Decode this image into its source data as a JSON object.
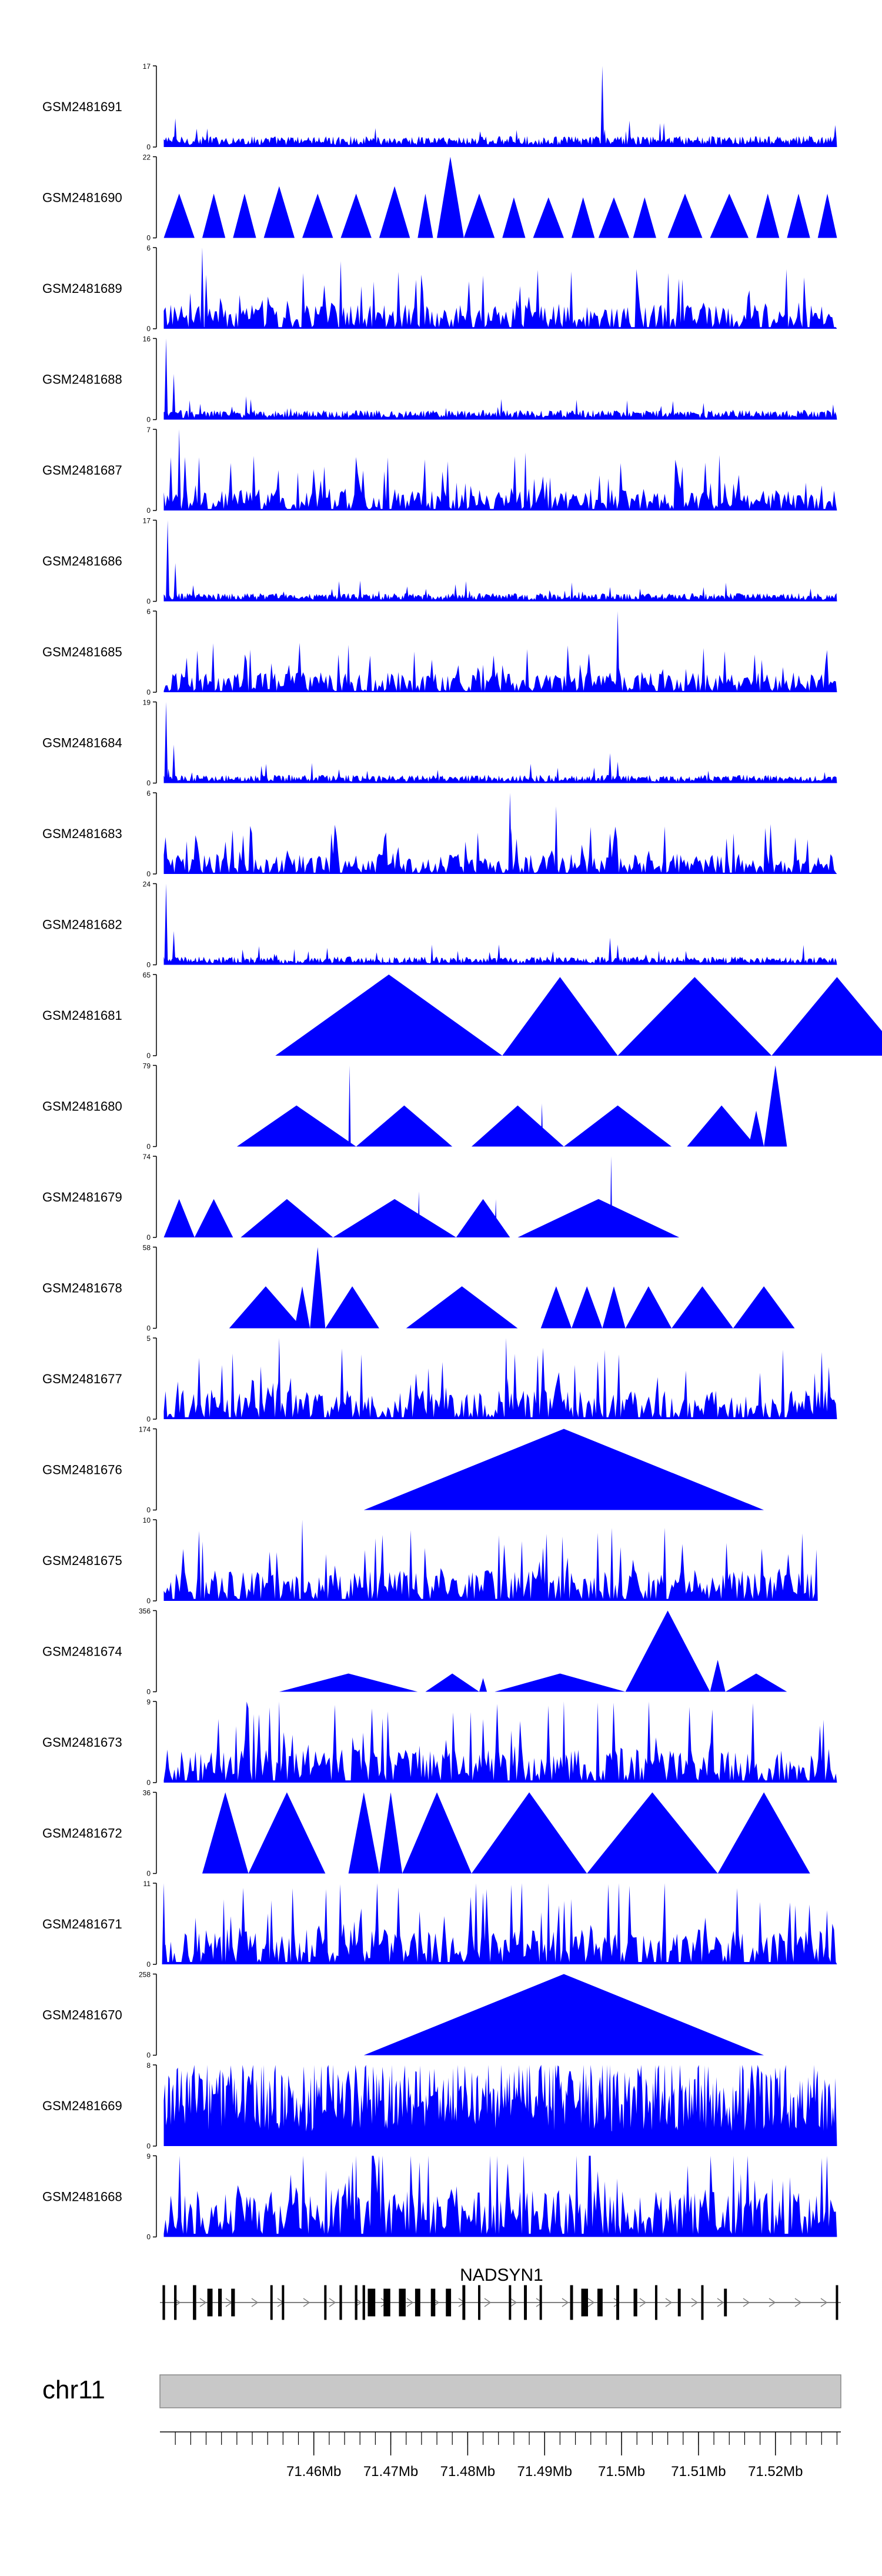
{
  "colors": {
    "fill": "#0000ff",
    "axis": "#000000",
    "ideogram": "#c8c8c8",
    "gene": "#000000",
    "intron": "#808080"
  },
  "chart_data": {
    "type": "area",
    "title": "",
    "chromosome": "chr11",
    "gene": "NADSYN1",
    "xlabel": "",
    "xlim": [
      71.44,
      71.5285
    ],
    "x_ticks": [
      71.46,
      71.47,
      71.48,
      71.49,
      71.5,
      71.51,
      71.52
    ],
    "x_tick_labels": [
      "71.46Mb",
      "71.47Mb",
      "71.48Mb",
      "71.49Mb",
      "71.5Mb",
      "71.51Mb",
      "71.52Mb"
    ],
    "series": [
      {
        "name": "GSM2481691",
        "ymax_label": "17",
        "ymin_label": "0",
        "ymax": 17,
        "pattern": "dense",
        "level": 0.08,
        "x0": 71.4405,
        "x1": 71.528,
        "spikes": [
          {
            "x": 71.442,
            "v": 6
          },
          {
            "x": 71.4975,
            "v": 17
          },
          {
            "x": 71.5055,
            "v": 5
          }
        ]
      },
      {
        "name": "GSM2481690",
        "ymax_label": "22",
        "ymin_label": "0",
        "ymax": 22,
        "pattern": "tri",
        "tri": [
          [
            71.4405,
            71.4445,
            12
          ],
          [
            71.4455,
            71.4485,
            12
          ],
          [
            71.4495,
            71.4525,
            12
          ],
          [
            71.4535,
            71.4575,
            14
          ],
          [
            71.4585,
            71.4625,
            12
          ],
          [
            71.4635,
            71.4675,
            12
          ],
          [
            71.4685,
            71.4725,
            14
          ],
          [
            71.4735,
            71.4755,
            12
          ],
          [
            71.476,
            71.4795,
            22
          ],
          [
            71.4795,
            71.4835,
            12
          ],
          [
            71.4845,
            71.4875,
            11
          ],
          [
            71.4885,
            71.4925,
            11
          ],
          [
            71.4935,
            71.4965,
            11
          ],
          [
            71.497,
            71.501,
            11
          ],
          [
            71.5015,
            71.5045,
            11
          ],
          [
            71.506,
            71.5105,
            12
          ],
          [
            71.5115,
            71.5165,
            12
          ],
          [
            71.5175,
            71.5205,
            12
          ],
          [
            71.5215,
            71.5245,
            12
          ],
          [
            71.5255,
            71.528,
            12
          ]
        ]
      },
      {
        "name": "GSM2481689",
        "ymax_label": "6",
        "ymin_label": "0",
        "ymax": 6,
        "pattern": "spiky",
        "level": 1.2,
        "x0": 71.4405,
        "x1": 71.528,
        "spikes": [
          {
            "x": 71.4455,
            "v": 6
          },
          {
            "x": 71.4635,
            "v": 5
          }
        ]
      },
      {
        "name": "GSM2481688",
        "ymax_label": "16",
        "ymin_label": "0",
        "ymax": 16,
        "pattern": "dense",
        "level": 0.07,
        "x0": 71.4405,
        "x1": 71.528,
        "spikes": [
          {
            "x": 71.4408,
            "v": 16
          },
          {
            "x": 71.4418,
            "v": 9
          },
          {
            "x": 71.5275,
            "v": 3
          }
        ]
      },
      {
        "name": "GSM2481687",
        "ymax_label": "7",
        "ymin_label": "0",
        "ymax": 7,
        "pattern": "spiky",
        "level": 1.3,
        "x0": 71.4405,
        "x1": 71.528,
        "spikes": [
          {
            "x": 71.4425,
            "v": 7
          },
          {
            "x": 71.4875,
            "v": 5
          }
        ]
      },
      {
        "name": "GSM2481686",
        "ymax_label": "17",
        "ymin_label": "0",
        "ymax": 17,
        "pattern": "dense",
        "level": 0.06,
        "x0": 71.4405,
        "x1": 71.528,
        "spikes": [
          {
            "x": 71.441,
            "v": 17
          },
          {
            "x": 71.442,
            "v": 8
          },
          {
            "x": 71.4985,
            "v": 3
          }
        ]
      },
      {
        "name": "GSM2481685",
        "ymax_label": "6",
        "ymin_label": "0",
        "ymax": 6,
        "pattern": "spiky",
        "level": 1.0,
        "x0": 71.4405,
        "x1": 71.528,
        "spikes": [
          {
            "x": 71.4995,
            "v": 6
          },
          {
            "x": 71.4645,
            "v": 3.5
          }
        ]
      },
      {
        "name": "GSM2481684",
        "ymax_label": "19",
        "ymin_label": "0",
        "ymax": 19,
        "pattern": "dense",
        "level": 0.06,
        "x0": 71.4405,
        "x1": 71.528,
        "spikes": [
          {
            "x": 71.4408,
            "v": 19
          },
          {
            "x": 71.4418,
            "v": 9
          },
          {
            "x": 71.4985,
            "v": 7
          },
          {
            "x": 71.4995,
            "v": 5
          }
        ]
      },
      {
        "name": "GSM2481683",
        "ymax_label": "6",
        "ymin_label": "0",
        "ymax": 6,
        "pattern": "spiky",
        "level": 1.0,
        "x0": 71.4405,
        "x1": 71.528,
        "spikes": [
          {
            "x": 71.4855,
            "v": 6
          },
          {
            "x": 71.4915,
            "v": 5
          }
        ]
      },
      {
        "name": "GSM2481682",
        "ymax_label": "24",
        "ymin_label": "0",
        "ymax": 24,
        "pattern": "dense",
        "level": 0.06,
        "x0": 71.4405,
        "x1": 71.528,
        "spikes": [
          {
            "x": 71.4408,
            "v": 24
          },
          {
            "x": 71.4418,
            "v": 10
          },
          {
            "x": 71.4985,
            "v": 8
          },
          {
            "x": 71.4995,
            "v": 6
          }
        ]
      },
      {
        "name": "GSM2481681",
        "ymax_label": "65",
        "ymin_label": "0",
        "ymax": 65,
        "pattern": "tri",
        "tri": [
          [
            71.455,
            71.4845,
            65
          ],
          [
            71.4845,
            71.4995,
            63
          ],
          [
            71.4995,
            71.5195,
            63
          ],
          [
            71.5195,
            71.5365,
            63
          ]
        ]
      },
      {
        "name": "GSM2481680",
        "ymax_label": "79",
        "ymin_label": "0",
        "ymax": 79,
        "pattern": "tri",
        "tri": [
          [
            71.45,
            71.4655,
            40
          ],
          [
            71.4645,
            71.4648,
            79
          ],
          [
            71.4655,
            71.478,
            40
          ],
          [
            71.4805,
            71.4925,
            40
          ],
          [
            71.4895,
            71.4898,
            42
          ],
          [
            71.4925,
            71.5065,
            40
          ],
          [
            71.5085,
            71.5175,
            40
          ],
          [
            71.5165,
            71.5185,
            35
          ],
          [
            71.5185,
            71.5215,
            79
          ]
        ]
      },
      {
        "name": "GSM2481679",
        "ymax_label": "74",
        "ymin_label": "0",
        "ymax": 74,
        "pattern": "tri",
        "tri": [
          [
            71.4405,
            71.4445,
            35
          ],
          [
            71.4445,
            71.4495,
            35
          ],
          [
            71.4505,
            71.4625,
            35
          ],
          [
            71.4625,
            71.4785,
            35
          ],
          [
            71.4735,
            71.4738,
            42
          ],
          [
            71.4785,
            71.4855,
            35
          ],
          [
            71.4835,
            71.4838,
            35
          ],
          [
            71.4865,
            71.5075,
            35
          ],
          [
            71.4985,
            71.4988,
            74
          ]
        ]
      },
      {
        "name": "GSM2481678",
        "ymax_label": "58",
        "ymin_label": "0",
        "ymax": 58,
        "pattern": "tri",
        "tri": [
          [
            71.449,
            71.4585,
            30
          ],
          [
            71.4575,
            71.4595,
            30
          ],
          [
            71.4595,
            71.4615,
            58
          ],
          [
            71.4615,
            71.4685,
            30
          ],
          [
            71.472,
            71.4865,
            30
          ],
          [
            71.4895,
            71.4935,
            30
          ],
          [
            71.4935,
            71.4975,
            30
          ],
          [
            71.4975,
            71.5005,
            30
          ],
          [
            71.5005,
            71.5065,
            30
          ],
          [
            71.5065,
            71.5145,
            30
          ],
          [
            71.5145,
            71.5225,
            30
          ]
        ]
      },
      {
        "name": "GSM2481677",
        "ymax_label": "5",
        "ymin_label": "0",
        "ymax": 5,
        "pattern": "spiky",
        "level": 1.2,
        "x0": 71.4405,
        "x1": 71.528,
        "spikes": [
          {
            "x": 71.4555,
            "v": 5
          },
          {
            "x": 71.485,
            "v": 5
          }
        ]
      },
      {
        "name": "GSM2481676",
        "ymax_label": "174",
        "ymin_label": "0",
        "ymax": 174,
        "pattern": "tri",
        "tri": [
          [
            71.4665,
            71.5185,
            174
          ]
        ]
      },
      {
        "name": "GSM2481675",
        "ymax_label": "10",
        "ymin_label": "0",
        "ymax": 10,
        "pattern": "spiky",
        "level": 2.5,
        "x0": 71.4405,
        "x1": 71.5255,
        "spikes": [
          {
            "x": 71.4585,
            "v": 10
          }
        ]
      },
      {
        "name": "GSM2481674",
        "ymax_label": "356",
        "ymin_label": "0",
        "ymax": 356,
        "pattern": "tri",
        "tri": [
          [
            71.4555,
            71.4735,
            80
          ],
          [
            71.4745,
            71.4815,
            80
          ],
          [
            71.4815,
            71.4825,
            60
          ],
          [
            71.4835,
            71.5005,
            80
          ],
          [
            71.5005,
            71.5115,
            356
          ],
          [
            71.5115,
            71.5135,
            140
          ],
          [
            71.5135,
            71.5215,
            80
          ]
        ]
      },
      {
        "name": "GSM2481673",
        "ymax_label": "9",
        "ymin_label": "0",
        "ymax": 9,
        "pattern": "spiky",
        "level": 2.5,
        "x0": 71.4405,
        "x1": 71.528,
        "spikes": [
          {
            "x": 71.4555,
            "v": 9
          },
          {
            "x": 71.4925,
            "v": 9
          }
        ]
      },
      {
        "name": "GSM2481672",
        "ymax_label": "36",
        "ymin_label": "0",
        "ymax": 36,
        "pattern": "tri",
        "tri": [
          [
            71.4455,
            71.4515,
            36
          ],
          [
            71.4515,
            71.4615,
            36
          ],
          [
            71.4645,
            71.4685,
            36
          ],
          [
            71.4685,
            71.4715,
            36
          ],
          [
            71.4715,
            71.4805,
            36
          ],
          [
            71.4805,
            71.4955,
            36
          ],
          [
            71.4955,
            71.5125,
            36
          ],
          [
            71.5125,
            71.5245,
            36
          ]
        ]
      },
      {
        "name": "GSM2481671",
        "ymax_label": "11",
        "ymin_label": "0",
        "ymax": 11,
        "pattern": "spiky",
        "level": 3.2,
        "x0": 71.4405,
        "x1": 71.528,
        "spikes": [
          {
            "x": 71.4405,
            "v": 11
          },
          {
            "x": 71.4905,
            "v": 11
          }
        ]
      },
      {
        "name": "GSM2481670",
        "ymax_label": "258",
        "ymin_label": "0",
        "ymax": 258,
        "pattern": "tri",
        "tri": [
          [
            71.4665,
            71.5185,
            258
          ]
        ]
      },
      {
        "name": "GSM2481669",
        "ymax_label": "8",
        "ymin_label": "0",
        "ymax": 8,
        "pattern": "dense",
        "level": 0.6,
        "x0": 71.4405,
        "x1": 71.528,
        "spikes": [
          {
            "x": 71.4985,
            "v": 8
          },
          {
            "x": 71.4995,
            "v": 6
          }
        ]
      },
      {
        "name": "GSM2481668",
        "ymax_label": "9",
        "ymin_label": "0",
        "ymax": 9,
        "pattern": "spiky",
        "level": 3.5,
        "x0": 71.4405,
        "x1": 71.528,
        "spikes": [
          {
            "x": 71.4655,
            "v": 9
          },
          {
            "x": 71.5155,
            "v": 7
          }
        ]
      }
    ]
  }
}
